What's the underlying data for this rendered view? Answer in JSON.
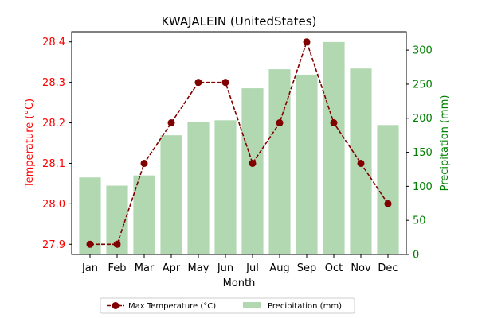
{
  "chart_data": {
    "type": "bar+line",
    "title": "KWAJALEIN (UnitedStates)",
    "xlabel": "Month",
    "categories": [
      "Jan",
      "Feb",
      "Mar",
      "Apr",
      "May",
      "Jun",
      "Jul",
      "Aug",
      "Sep",
      "Oct",
      "Nov",
      "Dec"
    ],
    "series": [
      {
        "name": "Max Temperature (°C)",
        "kind": "line",
        "axis": "left",
        "color": "#800000",
        "values": [
          27.9,
          27.9,
          28.1,
          28.2,
          28.3,
          28.3,
          28.1,
          28.2,
          28.4,
          28.2,
          28.1,
          28.0
        ]
      },
      {
        "name": "Precipitation (mm)",
        "kind": "bar",
        "axis": "right",
        "color": "#b2d8b2",
        "values": [
          113,
          101,
          116,
          175,
          194,
          197,
          244,
          272,
          264,
          312,
          273,
          190
        ]
      }
    ],
    "y_left": {
      "label": "Temperature (°C)",
      "range": [
        27.875,
        28.425
      ],
      "ticks": [
        "27.9",
        "28.0",
        "28.1",
        "28.2",
        "28.3",
        "28.4"
      ],
      "color": "#ff0000"
    },
    "y_right": {
      "label": "Precipitation (mm)",
      "range": [
        0,
        327
      ],
      "ticks": [
        "0",
        "50",
        "100",
        "150",
        "200",
        "250",
        "300"
      ],
      "color": "#008000"
    },
    "grid": false,
    "legend_placement": "bottom-center"
  }
}
